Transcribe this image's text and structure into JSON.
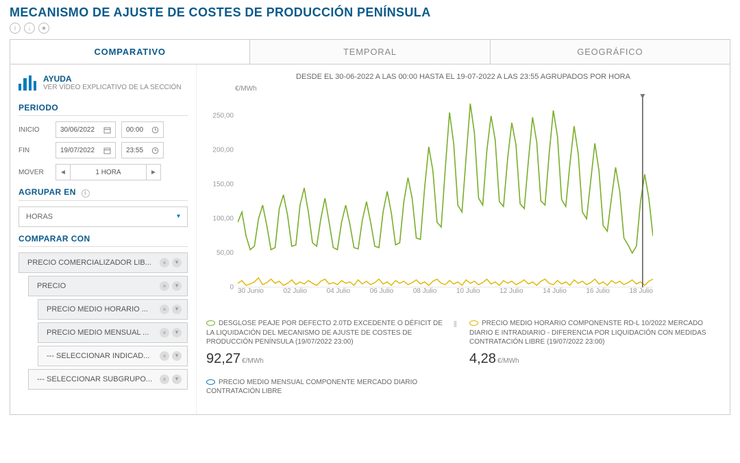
{
  "title": "MECANISMO DE AJUSTE DE COSTES DE PRODUCCIÓN PENÍNSULA",
  "tabs": [
    "COMPARATIVO",
    "TEMPORAL",
    "GEOGRÁFICO"
  ],
  "active_tab": 0,
  "help": {
    "title": "AYUDA",
    "subtitle": "VER VÍDEO EXPLICATIVO DE LA SECCIÓN"
  },
  "periodo": {
    "title": "PERIODO",
    "inicio_label": "INICIO",
    "fin_label": "FIN",
    "inicio_date": "30/06/2022",
    "inicio_time": "00:00",
    "fin_date": "19/07/2022",
    "fin_time": "23:55",
    "mover_label": "MOVER",
    "mover_unit": "1 HORA"
  },
  "agrupar": {
    "title": "AGRUPAR EN",
    "value": "HORAS"
  },
  "comparar": {
    "title": "COMPARAR CON",
    "items": [
      {
        "label": "PRECIO COMERCIALIZADOR LIB...",
        "indent": 0,
        "style": "dark"
      },
      {
        "label": "PRECIO",
        "indent": 1,
        "style": "dark"
      },
      {
        "label": "PRECIO MEDIO HORARIO ...",
        "indent": 2,
        "style": "dark"
      },
      {
        "label": "PRECIO MEDIO MENSUAL ...",
        "indent": 2,
        "style": "dark"
      },
      {
        "label": "--- SELECCIONAR INDICAD...",
        "indent": 2,
        "style": "light"
      },
      {
        "label": "--- SELECCIONAR SUBGRUPO...",
        "indent": 1,
        "style": "light"
      }
    ]
  },
  "chart": {
    "range_text": "DESDE EL 30-06-2022 A LAS 00:00 HASTA EL 19-07-2022 A LAS 23:55 AGRUPADOS POR HORA",
    "y_unit": "€/MWh",
    "ylim": [
      0,
      280
    ],
    "yticks": [
      0,
      50,
      100,
      150,
      200,
      250
    ],
    "ylabels": [
      "0",
      "50,00",
      "100,00",
      "150,00",
      "200,00",
      "250,00"
    ],
    "xticks": [
      "30 Junio",
      "02 Julio",
      "04 Julio",
      "06 Julio",
      "08 Julio",
      "10 Julio",
      "12 Julio",
      "14 Julio",
      "16 Julio",
      "18 Julio"
    ],
    "series": [
      {
        "name": "green",
        "color": "#7aae2c",
        "width": 1.6,
        "data": [
          95,
          110,
          75,
          55,
          60,
          100,
          120,
          90,
          55,
          58,
          115,
          135,
          105,
          60,
          62,
          120,
          145,
          110,
          65,
          60,
          100,
          130,
          95,
          58,
          55,
          95,
          120,
          92,
          58,
          56,
          98,
          125,
          95,
          60,
          58,
          110,
          140,
          108,
          62,
          65,
          125,
          160,
          130,
          72,
          70,
          145,
          205,
          170,
          95,
          88,
          175,
          255,
          210,
          120,
          110,
          190,
          268,
          225,
          130,
          120,
          200,
          250,
          215,
          125,
          118,
          188,
          240,
          208,
          122,
          115,
          185,
          248,
          212,
          126,
          120,
          195,
          258,
          220,
          128,
          118,
          180,
          235,
          195,
          110,
          100,
          155,
          210,
          170,
          90,
          82,
          130,
          175,
          140,
          72,
          62,
          50,
          60,
          125,
          165,
          130,
          75
        ]
      },
      {
        "name": "yellow",
        "color": "#e0b500",
        "width": 1.4,
        "data": [
          6,
          10,
          3,
          5,
          8,
          14,
          4,
          7,
          12,
          6,
          9,
          3,
          6,
          11,
          4,
          8,
          5,
          10,
          6,
          3,
          9,
          12,
          5,
          7,
          4,
          10,
          6,
          8,
          3,
          11,
          5,
          9,
          4,
          7,
          12,
          5,
          8,
          3,
          10,
          6,
          9,
          4,
          7,
          11,
          5,
          8,
          3,
          9,
          12,
          6,
          4,
          10,
          5,
          8,
          3,
          11,
          6,
          9,
          4,
          7,
          12,
          5,
          8,
          3,
          10,
          6,
          9,
          4,
          7,
          11,
          5,
          8,
          3,
          9,
          12,
          6,
          4,
          10,
          5,
          8,
          3,
          11,
          6,
          9,
          4,
          7,
          12,
          5,
          8,
          3,
          10,
          6,
          9,
          4,
          7,
          11,
          5,
          8,
          3,
          9,
          12
        ]
      }
    ],
    "cursor_x": 0.975
  },
  "legend": [
    {
      "color": "#7aae2c",
      "text": "DESGLOSE PEAJE POR DEFECTO 2.0TD EXCEDENTE O DÉFICIT DE LA LIQUIDACIÓN DEL MECANISMO DE AJUSTE DE COSTES DE PRODUCCIÓN PENÍNSULA (19/07/2022 23:00)",
      "value": "92,27",
      "unit": "€/MWh",
      "has_icon": true
    },
    {
      "color": "#e0b500",
      "text": "PRECIO MEDIO HORARIO COMPONENSTE RD-L 10/2022 MERCADO DIARIO E INTRADIARIO - DIFERENCIA POR LIQUIDACIÓN CON MEDIDAS CONTRATACIÓN LIBRE (19/07/2022 23:00)",
      "value": "4,28",
      "unit": "€/MWh",
      "has_icon": false
    },
    {
      "color": "#0a7bbd",
      "text": "PRECIO MEDIO MENSUAL COMPONENTE MERCADO DIARIO CONTRATACIÓN LIBRE",
      "value": "",
      "unit": "",
      "has_icon": false
    }
  ]
}
